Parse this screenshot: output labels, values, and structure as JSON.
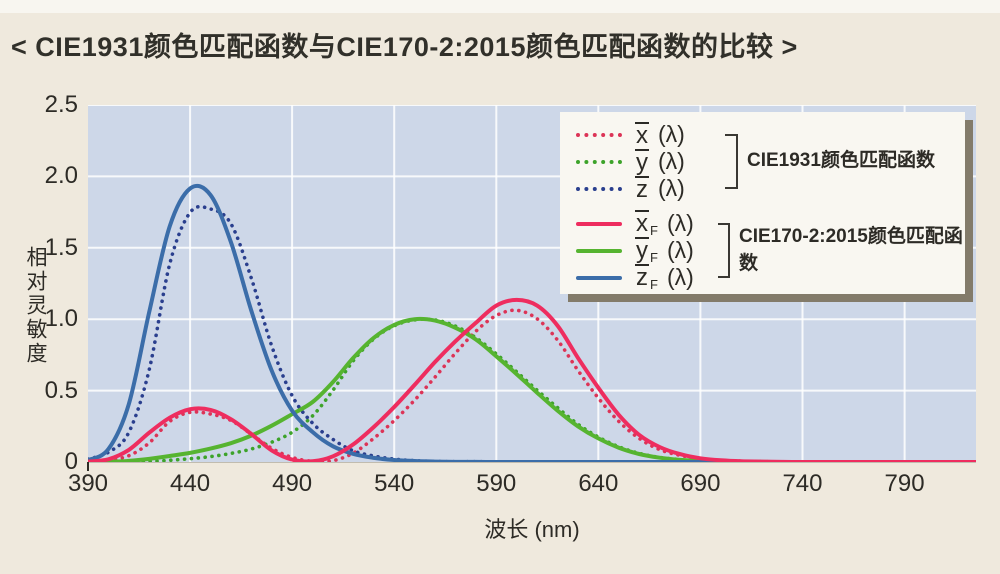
{
  "title": "< CIE1931颜色匹配函数与CIE170-2:2015颜色匹配函数的比较 >",
  "colors": {
    "page_bg": "#efe9dd",
    "page_top_strip": "#f8f6f0",
    "plot_bg": "#cdd7e8",
    "grid": "#ffffff",
    "title_text": "#31302a",
    "axis_text": "#2d2b26",
    "legend_bg": "#f9f7f1",
    "legend_shadow": "#837b6a",
    "bracket": "#3a3833",
    "cie1931_x": "#dc3457",
    "cie1931_y": "#3da32a",
    "cie1931_z": "#2a3f8e",
    "cie170_x": "#ee2d5f",
    "cie170_y": "#56b430",
    "cie170_z": "#3b6da9"
  },
  "chart_data": {
    "type": "line",
    "xlabel": "波长 (nm)",
    "ylabel": "相对灵敏度",
    "xlim": [
      390,
      825
    ],
    "ylim": [
      0,
      2.5
    ],
    "xticks": [
      390,
      440,
      490,
      540,
      590,
      640,
      690,
      740,
      790
    ],
    "yticks_values": [
      0,
      0.5,
      1.0,
      1.5,
      2.0,
      2.5
    ],
    "yticks_labels": [
      "0",
      "0.5",
      "1.0",
      "1.5",
      "2.0",
      "2.5"
    ],
    "grid": true,
    "x_unit": "nm",
    "wavelengths_nm": [
      390,
      400,
      410,
      420,
      430,
      440,
      450,
      460,
      470,
      480,
      490,
      500,
      510,
      520,
      530,
      540,
      550,
      560,
      570,
      580,
      590,
      600,
      610,
      620,
      630,
      640,
      650,
      660,
      670,
      680,
      690,
      700,
      710,
      720,
      730,
      740,
      750,
      760,
      770,
      780,
      790,
      800,
      810,
      820,
      830
    ],
    "series": [
      {
        "id": "x-cie1931",
        "name": "x̄(λ)",
        "standard": "CIE1931",
        "style": "dotted",
        "color": "#dc3457",
        "values": [
          0.004,
          0.014,
          0.044,
          0.134,
          0.284,
          0.348,
          0.336,
          0.291,
          0.195,
          0.096,
          0.032,
          0.005,
          0.009,
          0.063,
          0.166,
          0.29,
          0.433,
          0.594,
          0.762,
          0.916,
          1.026,
          1.062,
          1.003,
          0.854,
          0.642,
          0.448,
          0.284,
          0.165,
          0.087,
          0.047,
          0.023,
          0.011,
          0.006,
          0.003,
          0.001,
          0.001,
          0,
          0,
          0,
          0,
          0,
          0,
          0,
          0,
          0
        ]
      },
      {
        "id": "y-cie1931",
        "name": "ȳ(λ)",
        "standard": "CIE1931",
        "style": "dotted",
        "color": "#3da32a",
        "values": [
          0,
          0,
          0.001,
          0.004,
          0.012,
          0.023,
          0.038,
          0.06,
          0.091,
          0.139,
          0.208,
          0.323,
          0.503,
          0.71,
          0.862,
          0.954,
          0.995,
          0.995,
          0.952,
          0.87,
          0.757,
          0.631,
          0.503,
          0.381,
          0.265,
          0.175,
          0.107,
          0.061,
          0.032,
          0.017,
          0.008,
          0.004,
          0.002,
          0.001,
          0.001,
          0,
          0,
          0,
          0,
          0,
          0,
          0,
          0,
          0,
          0
        ]
      },
      {
        "id": "z-cie1931",
        "name": "z̄(λ)",
        "standard": "CIE1931",
        "style": "dotted",
        "color": "#2a3f8e",
        "values": [
          0.02,
          0.068,
          0.207,
          0.646,
          1.386,
          1.747,
          1.772,
          1.669,
          1.288,
          0.813,
          0.465,
          0.272,
          0.158,
          0.078,
          0.042,
          0.02,
          0.009,
          0.004,
          0.002,
          0.002,
          0.001,
          0.001,
          0,
          0,
          0,
          0,
          0,
          0,
          0,
          0,
          0,
          0,
          0,
          0,
          0,
          0,
          0,
          0,
          0,
          0,
          0,
          0,
          0,
          0,
          0
        ]
      },
      {
        "id": "xf-cie170",
        "name": "x̄F(λ)",
        "standard": "CIE170-2:2015",
        "style": "solid",
        "color": "#ee2d5f",
        "values": [
          0.003,
          0.019,
          0.085,
          0.205,
          0.31,
          0.37,
          0.365,
          0.3,
          0.196,
          0.081,
          0.017,
          0.005,
          0.04,
          0.124,
          0.245,
          0.385,
          0.54,
          0.7,
          0.845,
          0.975,
          1.095,
          1.135,
          1.095,
          0.955,
          0.73,
          0.52,
          0.33,
          0.19,
          0.105,
          0.055,
          0.026,
          0.012,
          0.005,
          0.003,
          0.001,
          0,
          0,
          0,
          0,
          0,
          0,
          0,
          0,
          0,
          0
        ]
      },
      {
        "id": "yf-cie170",
        "name": "ȳF(λ)",
        "standard": "CIE170-2:2015",
        "style": "solid",
        "color": "#56b430",
        "values": [
          0,
          0.002,
          0.008,
          0.022,
          0.042,
          0.064,
          0.094,
          0.132,
          0.185,
          0.254,
          0.335,
          0.42,
          0.56,
          0.73,
          0.87,
          0.96,
          1.0,
          0.99,
          0.94,
          0.858,
          0.74,
          0.615,
          0.485,
          0.36,
          0.25,
          0.165,
          0.1,
          0.056,
          0.03,
          0.015,
          0.007,
          0.003,
          0.002,
          0.001,
          0,
          0,
          0,
          0,
          0,
          0,
          0,
          0,
          0,
          0,
          0
        ]
      },
      {
        "id": "zf-cie170",
        "name": "z̄F(λ)",
        "standard": "CIE170-2:2015",
        "style": "solid",
        "color": "#3b6da9",
        "values": [
          0.013,
          0.09,
          0.405,
          1.05,
          1.65,
          1.915,
          1.87,
          1.54,
          1.06,
          0.64,
          0.36,
          0.21,
          0.11,
          0.057,
          0.029,
          0.014,
          0.007,
          0.003,
          0.001,
          0.001,
          0,
          0,
          0,
          0,
          0,
          0,
          0,
          0,
          0,
          0,
          0,
          0,
          0,
          0,
          0,
          0,
          0,
          0,
          0,
          0,
          0,
          0,
          0,
          0,
          0
        ]
      }
    ],
    "legend": {
      "position": "top-right",
      "groups": [
        {
          "label": "CIE1931颜色匹配函数",
          "entries": [
            {
              "series": "x̄(λ)",
              "symbol_base": "x",
              "symbol_sub": "",
              "symbol_arg": "(λ)",
              "style": "dotted",
              "color": "#dc3457"
            },
            {
              "series": "ȳ(λ)",
              "symbol_base": "y",
              "symbol_sub": "",
              "symbol_arg": "(λ)",
              "style": "dotted",
              "color": "#3da32a"
            },
            {
              "series": "z̄(λ)",
              "symbol_base": "z",
              "symbol_sub": "",
              "symbol_arg": "(λ)",
              "style": "dotted",
              "color": "#2a3f8e"
            }
          ]
        },
        {
          "label": "CIE170-2:2015颜色匹配函数",
          "entries": [
            {
              "series": "x̄F(λ)",
              "symbol_base": "x",
              "symbol_sub": "F",
              "symbol_arg": "(λ)",
              "style": "solid",
              "color": "#ee2d5f"
            },
            {
              "series": "ȳF(λ)",
              "symbol_base": "y",
              "symbol_sub": "F",
              "symbol_arg": "(λ)",
              "style": "solid",
              "color": "#56b430"
            },
            {
              "series": "z̄F(λ)",
              "symbol_base": "z",
              "symbol_sub": "F",
              "symbol_arg": "(λ)",
              "style": "solid",
              "color": "#3b6da9"
            }
          ]
        }
      ]
    }
  }
}
